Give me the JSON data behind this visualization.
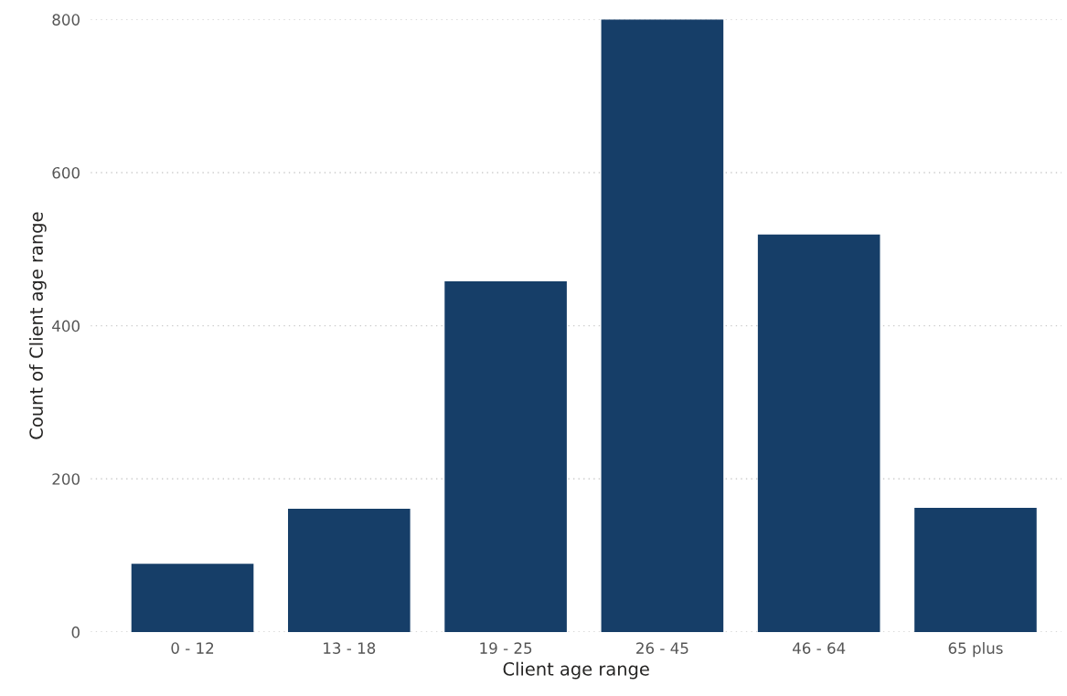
{
  "chart_data": {
    "type": "bar",
    "xlabel": "Client age range",
    "ylabel": "Count of Client age range",
    "categories": [
      "0 - 12",
      "13 - 18",
      "19 - 25",
      "26 - 45",
      "46 - 64",
      "65 plus"
    ],
    "values": [
      89,
      161,
      458,
      800,
      519,
      162
    ],
    "color": "#163e68",
    "ylim": [
      0,
      800
    ],
    "yticks": [
      0,
      200,
      400,
      600,
      800
    ],
    "grid": "y"
  }
}
